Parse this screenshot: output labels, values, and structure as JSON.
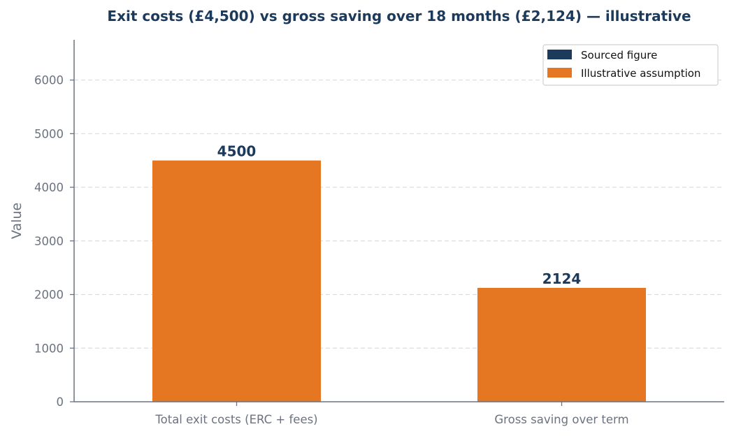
{
  "chart_data": {
    "type": "bar",
    "title": "Exit costs (£4,500) vs gross saving over 18 months (£2,124) — illustrative",
    "xlabel": "",
    "ylabel": "Value",
    "categories": [
      "Total exit costs (ERC + fees)",
      "Gross saving over term"
    ],
    "values": [
      4500,
      2124
    ],
    "data_labels": [
      "4500",
      "2124"
    ],
    "bar_kinds": [
      "Illustrative assumption",
      "Illustrative assumption"
    ],
    "ylim": [
      0,
      6750
    ],
    "yticks": [
      0,
      1000,
      2000,
      3000,
      4000,
      5000,
      6000
    ],
    "grid": true,
    "legend": {
      "placement": "top-right",
      "entries": [
        {
          "label": "Sourced figure",
          "color": "#1b3a5c"
        },
        {
          "label": "Illustrative assumption",
          "color": "#e67722"
        }
      ]
    },
    "colors": {
      "bar": "#e67722",
      "axis": "#6b7280",
      "grid": "#d9dde2",
      "title": "#1b3a5c"
    }
  }
}
